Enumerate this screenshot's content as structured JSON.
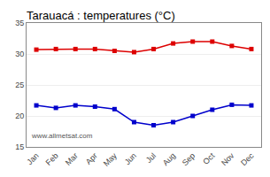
{
  "chart_data": {
    "type": "line",
    "title": "Tarauacá : temperatures (°C)",
    "categories": [
      "Jan",
      "Feb",
      "Mar",
      "Apr",
      "May",
      "Jun",
      "Jul",
      "Aug",
      "Sep",
      "Oct",
      "Nov",
      "Dec"
    ],
    "series": [
      {
        "color": "#dd0000",
        "marker": "square",
        "values": [
          30.7,
          30.8,
          30.8,
          30.8,
          30.5,
          30.3,
          30.8,
          31.7,
          32.0,
          32.0,
          31.3,
          30.8
        ]
      },
      {
        "color": "#0000cc",
        "marker": "square",
        "values": [
          21.7,
          21.3,
          21.7,
          21.5,
          21.1,
          19.0,
          18.5,
          19.0,
          20.0,
          21.0,
          21.8,
          21.7
        ]
      }
    ],
    "ylim": [
      15,
      35
    ],
    "yticks": [
      15,
      20,
      25,
      30,
      35
    ],
    "grid": "y",
    "annotations": [
      "www.allmetsat.com"
    ]
  }
}
